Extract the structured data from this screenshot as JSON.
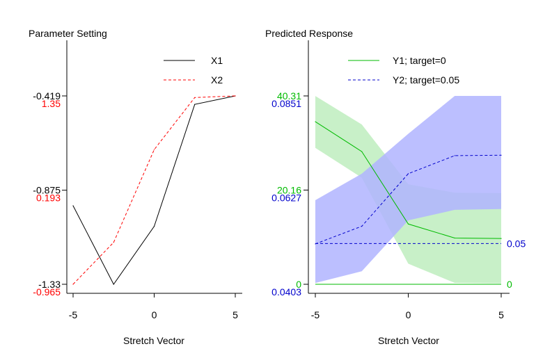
{
  "chart_data": [
    {
      "type": "line",
      "title": "Parameter Setting",
      "xlabel": "Stretch Vector",
      "x": [
        -5,
        -2.5,
        0,
        2.5,
        5
      ],
      "xticks": [
        "-5",
        "0",
        "5"
      ],
      "xtick_values": [
        -5,
        0,
        5
      ],
      "legend": "top-right",
      "series": [
        {
          "name": "X1",
          "color": "#000000",
          "dash": "solid",
          "values": [
            -0.95,
            -1.33,
            -1.05,
            -0.46,
            -0.419
          ],
          "axis": {
            "ticks": [
              "-0.419",
              "-0.875",
              "-1.33"
            ],
            "tick_values": [
              -0.419,
              -0.875,
              -1.33
            ],
            "ylim": [
              -1.33,
              -0.419
            ],
            "color": "#000000"
          }
        },
        {
          "name": "X2",
          "color": "#ff0000",
          "dash": "dashed",
          "values": [
            -0.965,
            -0.45,
            0.69,
            1.33,
            1.35
          ],
          "axis": {
            "ticks": [
              "1.35",
              "0.193",
              "-0.965"
            ],
            "tick_values": [
              1.35,
              0.193,
              -0.965
            ],
            "ylim": [
              -0.965,
              1.35
            ],
            "color": "#ff0000"
          }
        }
      ]
    },
    {
      "type": "line",
      "title": "Predicted Response",
      "xlabel": "Stretch Vector",
      "x": [
        -5,
        -2.5,
        0,
        2.5,
        5
      ],
      "xticks": [
        "-5",
        "0",
        "5"
      ],
      "xtick_values": [
        -5,
        0,
        5
      ],
      "legend": "top-right",
      "series": [
        {
          "name": "Y1; target=0",
          "color": "#00bb00",
          "band_color": "#c8f0c8",
          "dash": "solid",
          "values": [
            34.8,
            28.4,
            12.9,
            9.9,
            9.8
          ],
          "upper": [
            40.3,
            34.2,
            21.4,
            19.6,
            19.5
          ],
          "lower": [
            29.2,
            22.8,
            4.4,
            0.3,
            0.2
          ],
          "target": 0,
          "target_label": "0",
          "axis": {
            "ticks": [
              "40.31",
              "20.16",
              "0"
            ],
            "tick_values": [
              40.31,
              20.16,
              0
            ],
            "ylim": [
              0,
              40.31
            ],
            "color": "#00bb00"
          }
        },
        {
          "name": "Y2; target=0.05",
          "color": "#0000cc",
          "band_color": "#b0b4ff",
          "dash": "dashed",
          "values": [
            0.0499,
            0.0541,
            0.0666,
            0.0709,
            0.071
          ],
          "upper": [
            0.0603,
            0.0666,
            0.0761,
            0.0851,
            0.0851
          ],
          "lower": [
            0.0406,
            0.0434,
            0.0555,
            0.058,
            0.0582
          ],
          "target": 0.05,
          "target_label": "0.05",
          "axis": {
            "ticks": [
              "0.0851",
              "0.0627",
              "0.0403"
            ],
            "tick_values": [
              0.0851,
              0.0627,
              0.0403
            ],
            "ylim": [
              0.0403,
              0.0851
            ],
            "color": "#0000cc"
          }
        }
      ]
    }
  ]
}
